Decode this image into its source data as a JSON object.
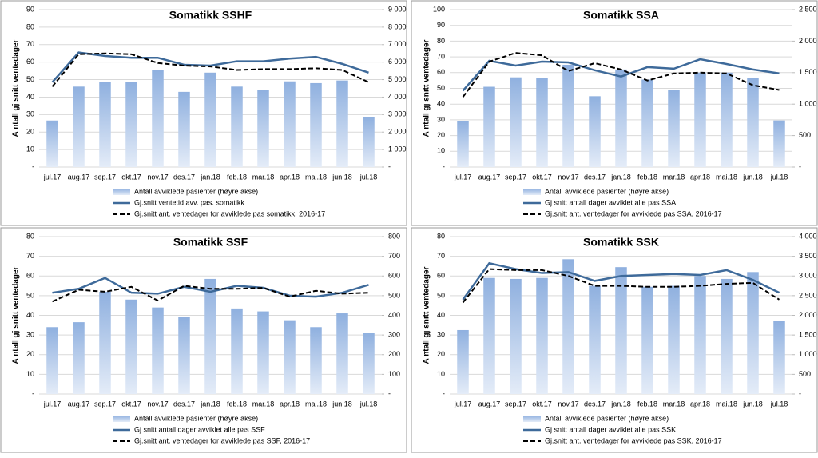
{
  "chart_data": [
    {
      "type": "combo",
      "title": "Somatikk SSHF",
      "y_label": "A ntall gj snitt ventedager",
      "grid": true,
      "categories": [
        "jul.17",
        "aug.17",
        "sep.17",
        "okt.17",
        "nov.17",
        "des.17",
        "jan.18",
        "feb.18",
        "mar.18",
        "apr.18",
        "mai.18",
        "jun.18",
        "jul.18"
      ],
      "ylim": [
        0,
        90
      ],
      "yticks": [
        {
          "value": 0,
          "label": "-"
        },
        10,
        20,
        30,
        40,
        50,
        60,
        70,
        80,
        90
      ],
      "y2lim": [
        0,
        9000
      ],
      "y2ticks": [
        {
          "value": 0,
          "label": "-"
        },
        {
          "value": 1000,
          "label": "1 000"
        },
        {
          "value": 2000,
          "label": "2 000"
        },
        {
          "value": 3000,
          "label": "3 000"
        },
        {
          "value": 4000,
          "label": "4 000"
        },
        {
          "value": 5000,
          "label": "5 000"
        },
        {
          "value": 6000,
          "label": "6 000"
        },
        {
          "value": 7000,
          "label": "7 000"
        },
        {
          "value": 8000,
          "label": "8 000"
        },
        {
          "value": 9000,
          "label": "9 000"
        }
      ],
      "series": [
        {
          "name": "Antall avviklede pasienter (høyre akse)",
          "type": "bar",
          "axis": "y2",
          "color": "#8fb0df",
          "values": [
            2660,
            4600,
            4850,
            4850,
            5550,
            4300,
            5400,
            4600,
            4400,
            4900,
            4800,
            4950,
            2850
          ]
        },
        {
          "name": "Gj.snitt ventetid avv. pas. somatikk",
          "type": "line",
          "color": "#3e6a9a",
          "values": [
            48.5,
            65.5,
            63.5,
            62.5,
            62.5,
            58.5,
            58,
            60.5,
            60.5,
            62,
            63,
            59,
            54
          ]
        },
        {
          "name": "Gj.snitt ant. ventedager for avviklede pas somatikk, 2016-17",
          "type": "line",
          "dash": true,
          "color": "#000000",
          "values": [
            46,
            64.5,
            65,
            64.5,
            59.5,
            58,
            57.5,
            55.5,
            56,
            56,
            56.5,
            55.5,
            48.5
          ]
        }
      ]
    },
    {
      "type": "combo",
      "title": "Somatikk SSA",
      "y_label": "A ntall gj snitt ventedager",
      "grid": true,
      "categories": [
        "jul.17",
        "aug.17",
        "sep.17",
        "okt.17",
        "nov.17",
        "des.17",
        "jan.18",
        "feb.18",
        "mar.18",
        "apr.18",
        "mai.18",
        "jun.18",
        "jul.18"
      ],
      "ylim": [
        0,
        100
      ],
      "yticks": [
        {
          "value": 0,
          "label": "-"
        },
        10,
        20,
        30,
        40,
        50,
        60,
        70,
        80,
        90,
        100
      ],
      "y2lim": [
        0,
        2500
      ],
      "y2ticks": [
        {
          "value": 0,
          "label": "-"
        },
        500,
        {
          "value": 1000,
          "label": "1 000"
        },
        {
          "value": 1500,
          "label": "1 500"
        },
        {
          "value": 2000,
          "label": "2 000"
        },
        {
          "value": 2500,
          "label": "2 500"
        }
      ],
      "series": [
        {
          "name": "Antall avviklede pasienter (høyre akse)",
          "type": "bar",
          "axis": "y2",
          "color": "#8fb0df",
          "values": [
            725,
            1275,
            1425,
            1410,
            1625,
            1125,
            1550,
            1390,
            1225,
            1500,
            1500,
            1410,
            740
          ]
        },
        {
          "name": "Gj snitt antall dager avviklet alle pas SSA",
          "type": "line",
          "color": "#3e6a9a",
          "values": [
            48.5,
            67.5,
            64.5,
            67,
            66.5,
            61.5,
            57.5,
            63.5,
            62.5,
            68.5,
            65.5,
            62,
            59.5
          ]
        },
        {
          "name": "Gj.snitt ant. ventedager for avviklede pas SSA, 2016-17",
          "type": "line",
          "dash": true,
          "color": "#000000",
          "values": [
            44.5,
            67,
            72.5,
            71,
            61,
            66,
            62,
            55,
            59.5,
            60,
            59.5,
            52,
            49
          ]
        }
      ]
    },
    {
      "type": "combo",
      "title": "Somatikk SSF",
      "y_label": "A ntall gj snitt ventedager",
      "grid": true,
      "categories": [
        "jul.17",
        "aug.17",
        "sep.17",
        "okt.17",
        "nov.17",
        "des.17",
        "jan.18",
        "feb.18",
        "mar.18",
        "apr.18",
        "mai.18",
        "jun.18",
        "jul.18"
      ],
      "ylim": [
        0,
        80
      ],
      "yticks": [
        {
          "value": 0,
          "label": "-"
        },
        10,
        20,
        30,
        40,
        50,
        60,
        70,
        80
      ],
      "y2lim": [
        0,
        800
      ],
      "y2ticks": [
        {
          "value": 0,
          "label": "-"
        },
        100,
        200,
        300,
        400,
        500,
        600,
        700,
        800
      ],
      "series": [
        {
          "name": "Antall avviklede pasienter (høyre akse)",
          "type": "bar",
          "axis": "y2",
          "color": "#8fb0df",
          "values": [
            340,
            365,
            520,
            480,
            440,
            390,
            585,
            435,
            420,
            375,
            340,
            410,
            310
          ]
        },
        {
          "name": "Gj snitt antall dager avviklet alle pas SSF",
          "type": "line",
          "color": "#3e6a9a",
          "values": [
            51.5,
            53.5,
            59,
            51.5,
            51,
            54.5,
            52,
            55,
            54,
            50,
            49.5,
            51.5,
            55.5
          ]
        },
        {
          "name": "Gj.snitt ant. ventedager for avviklede pas SSF, 2016-17",
          "type": "line",
          "dash": true,
          "color": "#000000",
          "values": [
            47,
            53,
            52,
            54.5,
            47.5,
            55,
            53.5,
            53.5,
            54,
            49.5,
            52.5,
            51,
            51.5
          ]
        }
      ]
    },
    {
      "type": "combo",
      "title": "Somatikk SSK",
      "y_label": "A ntall gj snitt ventedager",
      "grid": true,
      "categories": [
        "jul.17",
        "aug.17",
        "sep.17",
        "okt.17",
        "nov.17",
        "des.17",
        "jan.18",
        "feb.18",
        "mar.18",
        "apr.18",
        "mai.18",
        "jun.18",
        "jul.18"
      ],
      "ylim": [
        0,
        80
      ],
      "yticks": [
        {
          "value": 0,
          "label": "-"
        },
        10,
        20,
        30,
        40,
        50,
        60,
        70,
        80
      ],
      "y2lim": [
        0,
        4000
      ],
      "y2ticks": [
        {
          "value": 0,
          "label": "-"
        },
        500,
        {
          "value": 1000,
          "label": "1 000"
        },
        {
          "value": 1500,
          "label": "1 500"
        },
        {
          "value": 2000,
          "label": "2 000"
        },
        {
          "value": 2500,
          "label": "2 500"
        },
        {
          "value": 3000,
          "label": "3 000"
        },
        {
          "value": 3500,
          "label": "3 500"
        },
        {
          "value": 4000,
          "label": "4 000"
        }
      ],
      "series": [
        {
          "name": "Antall avviklede pasienter (høyre akse)",
          "type": "bar",
          "axis": "y2",
          "color": "#8fb0df",
          "values": [
            1625,
            2950,
            2925,
            2950,
            3425,
            2750,
            3225,
            2725,
            2750,
            3000,
            2925,
            3100,
            1850
          ]
        },
        {
          "name": "Gj snitt antall dager avviklet alle pas SSK",
          "type": "line",
          "color": "#3e6a9a",
          "values": [
            48,
            66.5,
            63.5,
            61.5,
            62,
            57.5,
            60,
            60.5,
            61,
            60.5,
            63,
            58,
            51.5
          ]
        },
        {
          "name": "Gj.snitt ant. ventedager for avviklede pas SSK, 2016-17",
          "type": "line",
          "dash": true,
          "color": "#000000",
          "values": [
            46.5,
            63.5,
            63,
            63,
            60,
            55,
            55,
            54.5,
            54.5,
            55,
            56,
            56.5,
            48
          ]
        }
      ]
    }
  ]
}
